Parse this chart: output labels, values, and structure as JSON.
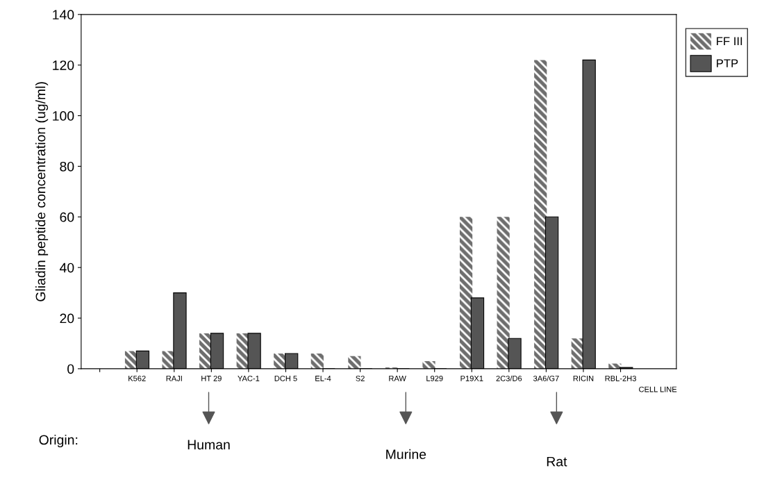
{
  "chart_data": {
    "type": "bar",
    "ylabel": "Gliadin peptide concentration (ug/ml)",
    "xlabel": "CELL LINE",
    "categories": [
      null,
      "K562",
      "RAJI",
      "HT 29",
      "YAC-1",
      "DCH 5",
      "EL-4",
      "S2",
      "RAW",
      "L929",
      "P19X1",
      "2C3/D6",
      "3A6/G7",
      "RICIN",
      "RBL-2H3"
    ],
    "series": [
      {
        "name": "FF III",
        "color": "#6e6e6e",
        "values": [
          null,
          7,
          7,
          14,
          14,
          6,
          6,
          5,
          0.5,
          3,
          60,
          60,
          122,
          12,
          2
        ]
      },
      {
        "name": "PTP",
        "color": "#555555",
        "values": [
          null,
          7,
          30,
          14,
          14,
          6,
          0,
          0,
          0,
          0,
          28,
          12,
          60,
          122,
          0.5
        ]
      }
    ],
    "ylim": [
      0,
      140
    ],
    "yticks": [
      0,
      20,
      40,
      60,
      80,
      100,
      120,
      140
    ],
    "legend": "right",
    "grid": false,
    "annotations": [
      "Origin:",
      "Human",
      "Murine",
      "Rat"
    ]
  }
}
